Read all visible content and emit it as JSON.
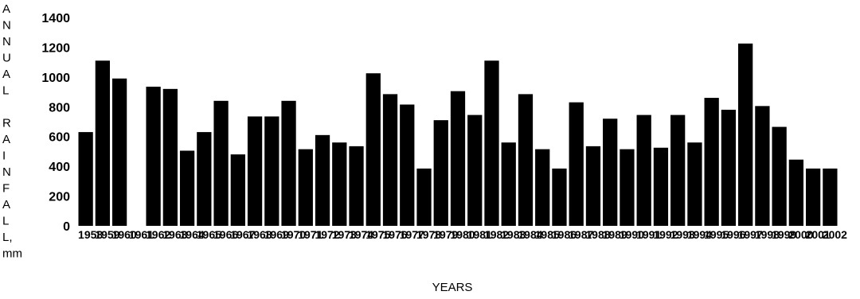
{
  "chart_data": {
    "type": "bar",
    "title": "",
    "xlabel": "YEARS",
    "ylabel": "ANNUAL RAINFALL, mm",
    "ylabel_lines": [
      "A",
      "N",
      "N",
      "U",
      "A",
      "L",
      "",
      "R",
      "A",
      "I",
      "N",
      "F",
      "A",
      "L",
      "L,",
      "mm"
    ],
    "ylim": [
      0,
      1400
    ],
    "yticks": [
      "0",
      "200",
      "400",
      "600",
      "800",
      "1000",
      "1200",
      "1400"
    ],
    "grid": false,
    "bar_color": "#000000",
    "categories": [
      "1958",
      "1959",
      "1960",
      "1961",
      "1962",
      "1963",
      "1964",
      "1965",
      "1966",
      "1967",
      "1968",
      "1969",
      "1970",
      "1971",
      "1972",
      "1973",
      "1974",
      "1975",
      "1976",
      "1977",
      "1978",
      "1979",
      "1980",
      "1981",
      "1982",
      "1983",
      "1984",
      "1985",
      "1986",
      "1987",
      "1988",
      "1989",
      "1990",
      "1991",
      "1992",
      "1993",
      "1994",
      "1995",
      "1996",
      "1997",
      "1998",
      "1999",
      "2000",
      "2001",
      "2002"
    ],
    "values": [
      630,
      1110,
      990,
      0,
      935,
      920,
      505,
      630,
      840,
      480,
      735,
      735,
      840,
      515,
      610,
      560,
      535,
      1025,
      885,
      815,
      385,
      710,
      905,
      745,
      1110,
      560,
      885,
      515,
      385,
      830,
      535,
      720,
      515,
      745,
      525,
      745,
      560,
      860,
      780,
      1225,
      805,
      665,
      445,
      385,
      385
    ]
  }
}
